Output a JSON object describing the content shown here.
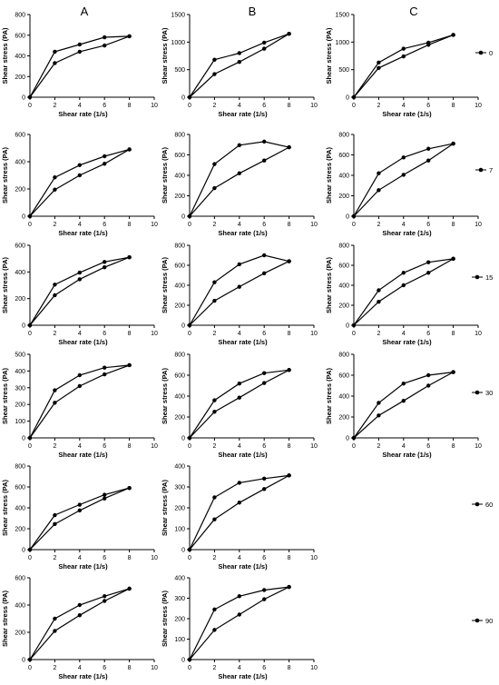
{
  "column_titles": [
    "A",
    "B",
    "C"
  ],
  "legend_labels": [
    "0",
    "7",
    "15",
    "30",
    "60",
    "90"
  ],
  "axis": {
    "xlabel": "Shear rate (1/s)",
    "ylabel": "Shear stress (PA)",
    "x_ticks": [
      0,
      2,
      4,
      6,
      8,
      10
    ]
  },
  "chart_data": [
    {
      "type": "line",
      "panel": "A-0",
      "x": [
        0,
        2,
        4,
        6,
        8
      ],
      "xlim": [
        0,
        10
      ],
      "ylim": [
        0,
        800
      ],
      "y_ticks": [
        0,
        200,
        400,
        600,
        800
      ],
      "series": [
        {
          "values": [
            0,
            440,
            510,
            580,
            590
          ]
        },
        {
          "values": [
            0,
            330,
            440,
            500,
            590
          ]
        }
      ]
    },
    {
      "type": "line",
      "panel": "B-0",
      "x": [
        0,
        2,
        4,
        6,
        8
      ],
      "xlim": [
        0,
        10
      ],
      "ylim": [
        0,
        1500
      ],
      "y_ticks": [
        0,
        500,
        1000,
        1500
      ],
      "series": [
        {
          "values": [
            0,
            680,
            800,
            990,
            1150
          ]
        },
        {
          "values": [
            0,
            420,
            640,
            880,
            1150
          ]
        }
      ]
    },
    {
      "type": "line",
      "panel": "C-0",
      "x": [
        0,
        2,
        4,
        6,
        8
      ],
      "xlim": [
        0,
        10
      ],
      "ylim": [
        0,
        1500
      ],
      "y_ticks": [
        0,
        500,
        1000,
        1500
      ],
      "series": [
        {
          "values": [
            0,
            630,
            880,
            990,
            1130
          ]
        },
        {
          "values": [
            0,
            530,
            740,
            950,
            1130
          ]
        }
      ]
    },
    {
      "type": "line",
      "panel": "A-7",
      "x": [
        0,
        2,
        4,
        6,
        8
      ],
      "xlim": [
        0,
        10
      ],
      "ylim": [
        0,
        600
      ],
      "y_ticks": [
        0,
        200,
        400,
        600
      ],
      "series": [
        {
          "values": [
            0,
            285,
            375,
            440,
            490
          ]
        },
        {
          "values": [
            0,
            195,
            300,
            385,
            490
          ]
        }
      ]
    },
    {
      "type": "line",
      "panel": "B-7",
      "x": [
        0,
        2,
        4,
        6,
        8
      ],
      "xlim": [
        0,
        10
      ],
      "ylim": [
        0,
        800
      ],
      "y_ticks": [
        0,
        200,
        400,
        600,
        800
      ],
      "series": [
        {
          "values": [
            0,
            510,
            695,
            730,
            675
          ]
        },
        {
          "values": [
            0,
            275,
            420,
            545,
            675
          ]
        }
      ]
    },
    {
      "type": "line",
      "panel": "C-7",
      "x": [
        0,
        2,
        4,
        6,
        8
      ],
      "xlim": [
        0,
        10
      ],
      "ylim": [
        0,
        800
      ],
      "y_ticks": [
        0,
        200,
        400,
        600,
        800
      ],
      "series": [
        {
          "values": [
            0,
            420,
            575,
            660,
            710
          ]
        },
        {
          "values": [
            0,
            255,
            405,
            545,
            710
          ]
        }
      ]
    },
    {
      "type": "line",
      "panel": "A-15",
      "x": [
        0,
        2,
        4,
        6,
        8
      ],
      "xlim": [
        0,
        10
      ],
      "ylim": [
        0,
        600
      ],
      "y_ticks": [
        0,
        200,
        400,
        600
      ],
      "series": [
        {
          "values": [
            0,
            305,
            395,
            475,
            510
          ]
        },
        {
          "values": [
            0,
            225,
            345,
            435,
            510
          ]
        }
      ]
    },
    {
      "type": "line",
      "panel": "B-15",
      "x": [
        0,
        2,
        4,
        6,
        8
      ],
      "xlim": [
        0,
        10
      ],
      "ylim": [
        0,
        800
      ],
      "y_ticks": [
        0,
        200,
        400,
        600,
        800
      ],
      "series": [
        {
          "values": [
            0,
            430,
            610,
            700,
            640
          ]
        },
        {
          "values": [
            0,
            245,
            385,
            520,
            640
          ]
        }
      ]
    },
    {
      "type": "line",
      "panel": "C-15",
      "x": [
        0,
        2,
        4,
        6,
        8
      ],
      "xlim": [
        0,
        10
      ],
      "ylim": [
        0,
        800
      ],
      "y_ticks": [
        0,
        200,
        400,
        600,
        800
      ],
      "series": [
        {
          "values": [
            0,
            350,
            525,
            630,
            665
          ]
        },
        {
          "values": [
            0,
            235,
            400,
            525,
            665
          ]
        }
      ]
    },
    {
      "type": "line",
      "panel": "A-30",
      "x": [
        0,
        2,
        4,
        6,
        8
      ],
      "xlim": [
        0,
        10
      ],
      "ylim": [
        0,
        500
      ],
      "y_ticks": [
        0,
        100,
        200,
        300,
        400,
        500
      ],
      "series": [
        {
          "values": [
            0,
            285,
            375,
            420,
            435
          ]
        },
        {
          "values": [
            0,
            210,
            310,
            380,
            435
          ]
        }
      ]
    },
    {
      "type": "line",
      "panel": "B-30",
      "x": [
        0,
        2,
        4,
        6,
        8
      ],
      "xlim": [
        0,
        10
      ],
      "ylim": [
        0,
        800
      ],
      "y_ticks": [
        0,
        200,
        400,
        600,
        800
      ],
      "series": [
        {
          "values": [
            0,
            360,
            520,
            620,
            650
          ]
        },
        {
          "values": [
            0,
            250,
            385,
            525,
            650
          ]
        }
      ]
    },
    {
      "type": "line",
      "panel": "C-30",
      "x": [
        0,
        2,
        4,
        6,
        8
      ],
      "xlim": [
        0,
        10
      ],
      "ylim": [
        0,
        800
      ],
      "y_ticks": [
        0,
        200,
        400,
        600,
        800
      ],
      "series": [
        {
          "values": [
            0,
            335,
            520,
            600,
            630
          ]
        },
        {
          "values": [
            0,
            215,
            355,
            500,
            630
          ]
        }
      ]
    },
    {
      "type": "line",
      "panel": "A-60",
      "x": [
        0,
        2,
        4,
        6,
        8
      ],
      "xlim": [
        0,
        10
      ],
      "ylim": [
        0,
        800
      ],
      "y_ticks": [
        0,
        200,
        400,
        600,
        800
      ],
      "series": [
        {
          "values": [
            0,
            330,
            430,
            525,
            590
          ]
        },
        {
          "values": [
            0,
            245,
            375,
            490,
            590
          ]
        }
      ]
    },
    {
      "type": "line",
      "panel": "B-60",
      "x": [
        0,
        2,
        4,
        6,
        8
      ],
      "xlim": [
        0,
        10
      ],
      "ylim": [
        0,
        400
      ],
      "y_ticks": [
        0,
        100,
        200,
        300,
        400
      ],
      "series": [
        {
          "values": [
            0,
            250,
            320,
            340,
            355
          ]
        },
        {
          "values": [
            0,
            145,
            225,
            290,
            355
          ]
        }
      ]
    },
    {
      "type": "line",
      "panel": "A-90",
      "x": [
        0,
        2,
        4,
        6,
        8
      ],
      "xlim": [
        0,
        10
      ],
      "ylim": [
        0,
        600
      ],
      "y_ticks": [
        0,
        200,
        400,
        600
      ],
      "series": [
        {
          "values": [
            0,
            300,
            400,
            465,
            520
          ]
        },
        {
          "values": [
            0,
            210,
            325,
            430,
            520
          ]
        }
      ]
    },
    {
      "type": "line",
      "panel": "B-90",
      "x": [
        0,
        2,
        4,
        6,
        8
      ],
      "xlim": [
        0,
        10
      ],
      "ylim": [
        0,
        400
      ],
      "y_ticks": [
        0,
        100,
        200,
        300,
        400
      ],
      "series": [
        {
          "values": [
            0,
            245,
            310,
            340,
            355
          ]
        },
        {
          "values": [
            0,
            145,
            220,
            295,
            355
          ]
        }
      ]
    }
  ]
}
